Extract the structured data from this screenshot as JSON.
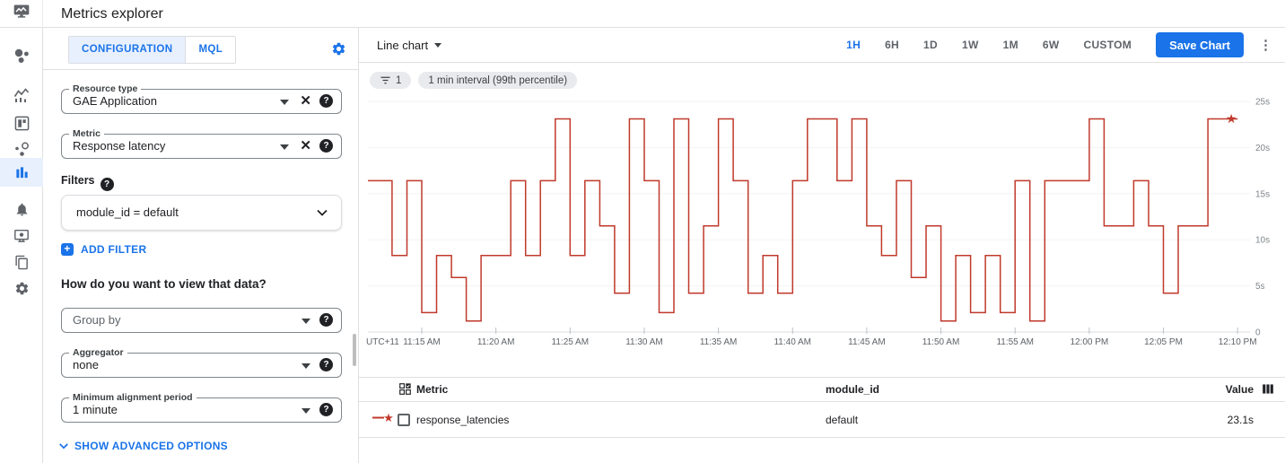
{
  "header": {
    "title": "Metrics explorer"
  },
  "rail": {
    "items": [
      {
        "name": "monitoring-overview"
      },
      {
        "name": "metrics"
      },
      {
        "name": "dashboards"
      },
      {
        "name": "services"
      },
      {
        "name": "metrics-explorer",
        "active": true
      },
      {
        "name": "alerting"
      },
      {
        "name": "uptime-checks"
      },
      {
        "name": "groups"
      },
      {
        "name": "settings"
      }
    ]
  },
  "config": {
    "tabs": [
      {
        "label": "CONFIGURATION",
        "active": true
      },
      {
        "label": "MQL",
        "active": false
      }
    ],
    "resource_type": {
      "label": "Resource type",
      "value": "GAE Application"
    },
    "metric": {
      "label": "Metric",
      "value": "Response latency"
    },
    "filters_label": "Filters",
    "filter_value": "module_id = default",
    "add_filter_label": "ADD FILTER",
    "view_question": "How do you want to view that data?",
    "group_by": {
      "placeholder": "Group by"
    },
    "aggregator": {
      "label": "Aggregator",
      "value": "none"
    },
    "min_alignment": {
      "label": "Minimum alignment period",
      "value": "1 minute"
    },
    "advanced_label": "SHOW ADVANCED OPTIONS"
  },
  "chartpane": {
    "chart_type_label": "Line chart",
    "time_ranges": [
      "1H",
      "6H",
      "1D",
      "1W",
      "1M",
      "6W",
      "CUSTOM"
    ],
    "active_range": "1H",
    "save_button": "Save Chart",
    "chips": [
      {
        "icon": "filter-list-icon",
        "label": "1"
      },
      {
        "label": "1 min interval (99th percentile)"
      }
    ]
  },
  "chart_data": {
    "type": "line",
    "step": true,
    "unit": "s",
    "ylim": [
      0,
      25
    ],
    "y_ticks": [
      "25s",
      "20s",
      "15s",
      "10s",
      "5s",
      "0"
    ],
    "start_label": "UTC+11",
    "x_ticks": [
      "11:15 AM",
      "11:20 AM",
      "11:25 AM",
      "11:30 AM",
      "11:35 AM",
      "11:40 AM",
      "11:45 AM",
      "11:50 AM",
      "11:55 AM",
      "12:00 PM",
      "12:05 PM",
      "12:10 PM"
    ],
    "x_start_minute_offset": 11,
    "minutes_per_point": 1,
    "legend_position": "table-below",
    "grid": "horizontal-only",
    "end_marker": "star",
    "series": [
      {
        "name": "response_latencies",
        "color": "#c0392b",
        "values": [
          16.4,
          16.4,
          8.3,
          16.4,
          2.1,
          8.3,
          5.9,
          1.2,
          8.3,
          8.3,
          16.4,
          8.3,
          16.4,
          23.1,
          8.3,
          16.4,
          11.5,
          4.2,
          23.1,
          16.4,
          2.1,
          23.1,
          4.2,
          11.5,
          23.1,
          16.4,
          4.2,
          8.3,
          4.2,
          16.4,
          23.1,
          23.1,
          16.4,
          23.1,
          11.5,
          8.3,
          16.4,
          5.9,
          11.5,
          1.2,
          8.3,
          2.1,
          8.3,
          2.1,
          16.4,
          1.2,
          16.4,
          16.4,
          16.4,
          23.1,
          11.5,
          11.5,
          16.4,
          11.5,
          4.2,
          11.5,
          11.5,
          23.1,
          23.1
        ]
      }
    ]
  },
  "table": {
    "columns": [
      "Metric",
      "module_id",
      "Value"
    ],
    "rows": [
      {
        "metric": "response_latencies",
        "module_id": "default",
        "value": "23.1s"
      }
    ]
  }
}
